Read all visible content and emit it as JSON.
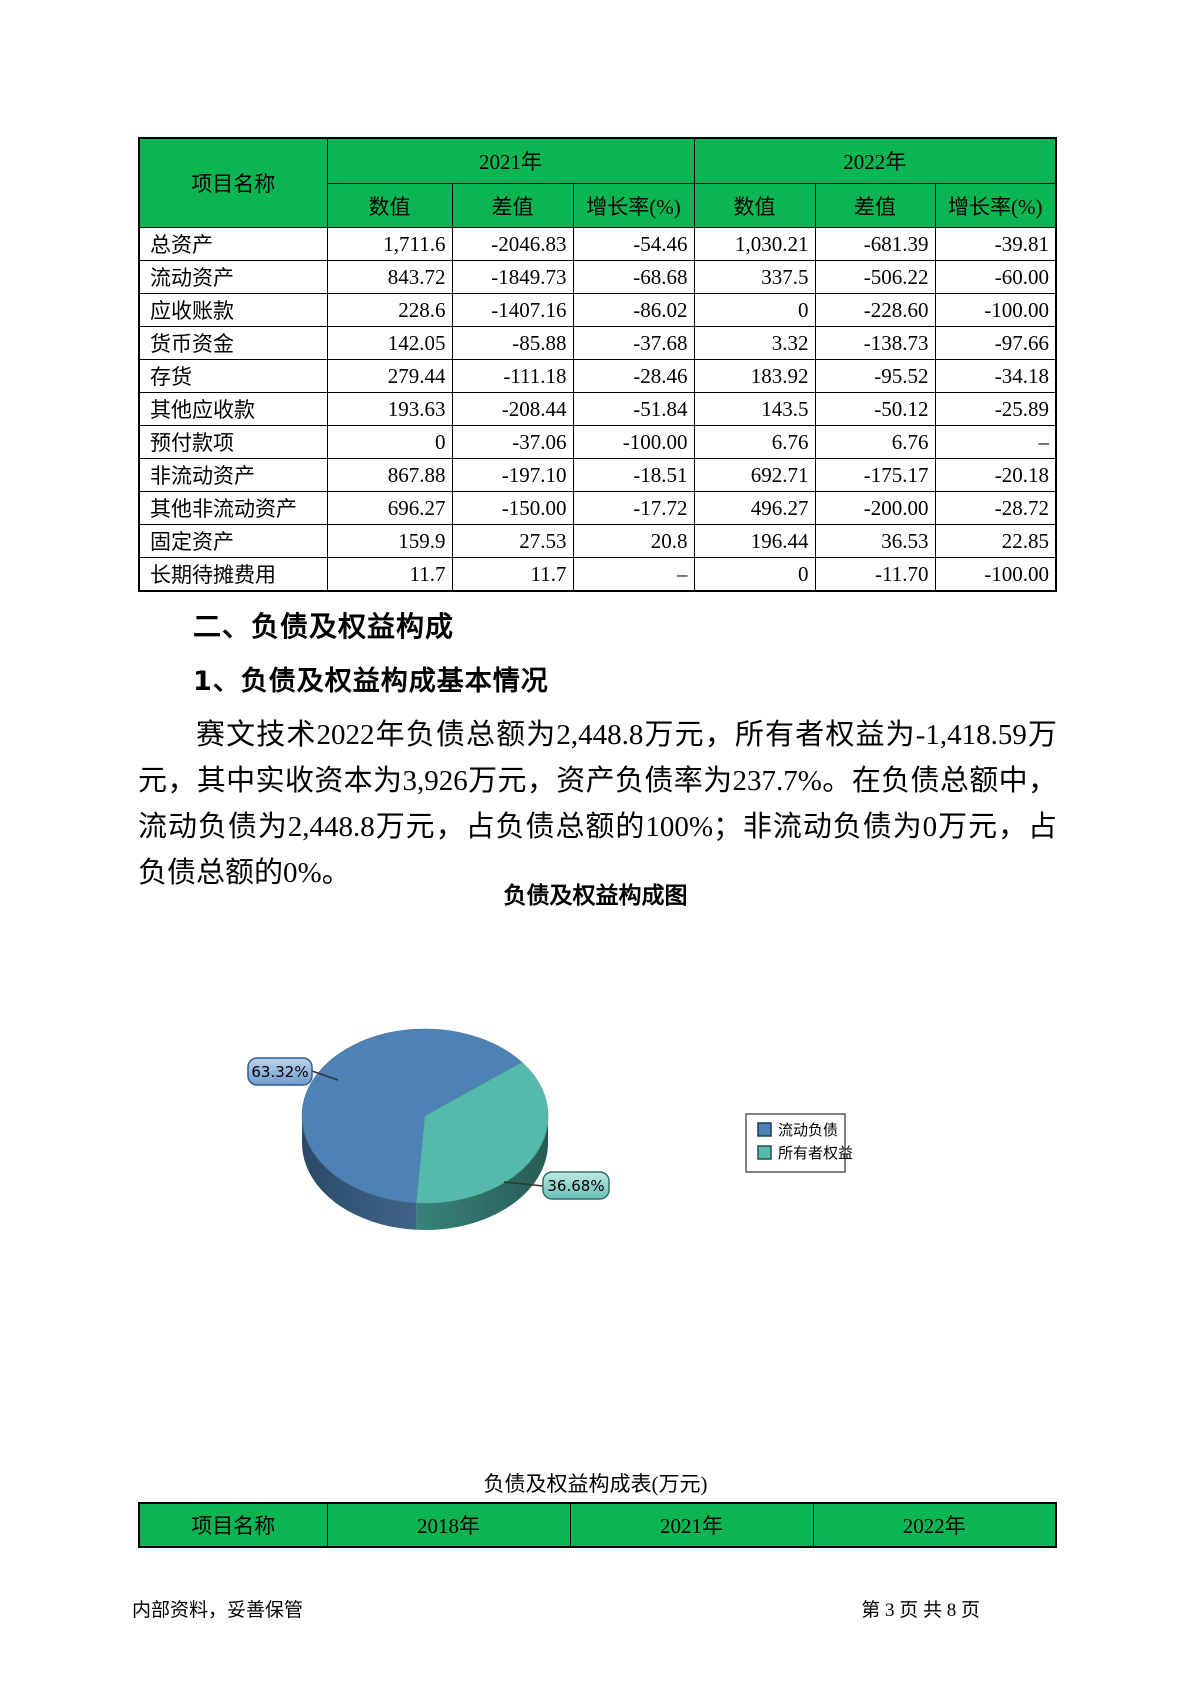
{
  "top_table": {
    "col_group_label": "项目名称",
    "year_groups": [
      "2021年",
      "2022年"
    ],
    "sub_headers": [
      "数值",
      "差值",
      "增长率(%)"
    ],
    "rows": [
      {
        "name": "总资产",
        "values": [
          "1,711.6",
          "-2046.83",
          "-54.46",
          "1,030.21",
          "-681.39",
          "-39.81"
        ]
      },
      {
        "name": "流动资产",
        "values": [
          "843.72",
          "-1849.73",
          "-68.68",
          "337.5",
          "-506.22",
          "-60.00"
        ]
      },
      {
        "name": "应收账款",
        "values": [
          "228.6",
          "-1407.16",
          "-86.02",
          "0",
          "-228.60",
          "-100.00"
        ]
      },
      {
        "name": "货币资金",
        "values": [
          "142.05",
          "-85.88",
          "-37.68",
          "3.32",
          "-138.73",
          "-97.66"
        ]
      },
      {
        "name": "存货",
        "values": [
          "279.44",
          "-111.18",
          "-28.46",
          "183.92",
          "-95.52",
          "-34.18"
        ]
      },
      {
        "name": "其他应收款",
        "values": [
          "193.63",
          "-208.44",
          "-51.84",
          "143.5",
          "-50.12",
          "-25.89"
        ]
      },
      {
        "name": "预付款项",
        "values": [
          "0",
          "-37.06",
          "-100.00",
          "6.76",
          "6.76",
          "–"
        ]
      },
      {
        "name": "非流动资产",
        "values": [
          "867.88",
          "-197.10",
          "-18.51",
          "692.71",
          "-175.17",
          "-20.18"
        ]
      },
      {
        "name": "其他非流动资产",
        "values": [
          "696.27",
          "-150.00",
          "-17.72",
          "496.27",
          "-200.00",
          "-28.72"
        ]
      },
      {
        "name": "固定资产",
        "values": [
          "159.9",
          "27.53",
          "20.8",
          "196.44",
          "36.53",
          "22.85"
        ]
      },
      {
        "name": "长期待摊费用",
        "values": [
          "11.7",
          "11.7",
          "–",
          "0",
          "-11.70",
          "-100.00"
        ]
      }
    ]
  },
  "sections": {
    "h2": "二、负债及权益构成",
    "h3": "1、负债及权益构成基本情况",
    "paragraph": "赛文技术2022年负债总额为2,448.8万元，所有者权益为-1,418.59万元，其中实收资本为3,926万元，资产负债率为237.7%。在负债总额中，流动负债为2,448.8万元，占负债总额的100%；非流动负债为0万元，占负债总额的0%。"
  },
  "chart_data": {
    "type": "pie",
    "style": "3d",
    "title": "负债及权益构成图",
    "labels": [
      "流动负债",
      "所有者权益"
    ],
    "values": [
      63.32,
      36.68
    ],
    "unit": "%",
    "callouts": [
      "63.32%",
      "36.68%"
    ],
    "colors": [
      "#4e82b4",
      "#56b9ae"
    ],
    "legend_position": "right"
  },
  "bottom_table": {
    "caption": "负债及权益构成表(万元)",
    "headers": [
      "项目名称",
      "2018年",
      "2021年",
      "2022年"
    ]
  },
  "footer": {
    "left": "内部资料，妥善保管",
    "right": "第 3 页  共 8 页"
  },
  "colors": {
    "header_green": "#0bb652",
    "pie_blue": "#4e82b4",
    "pie_teal": "#56b9ae",
    "pie_blue_side": "#39597b",
    "pie_teal_side": "#2e6b63"
  }
}
